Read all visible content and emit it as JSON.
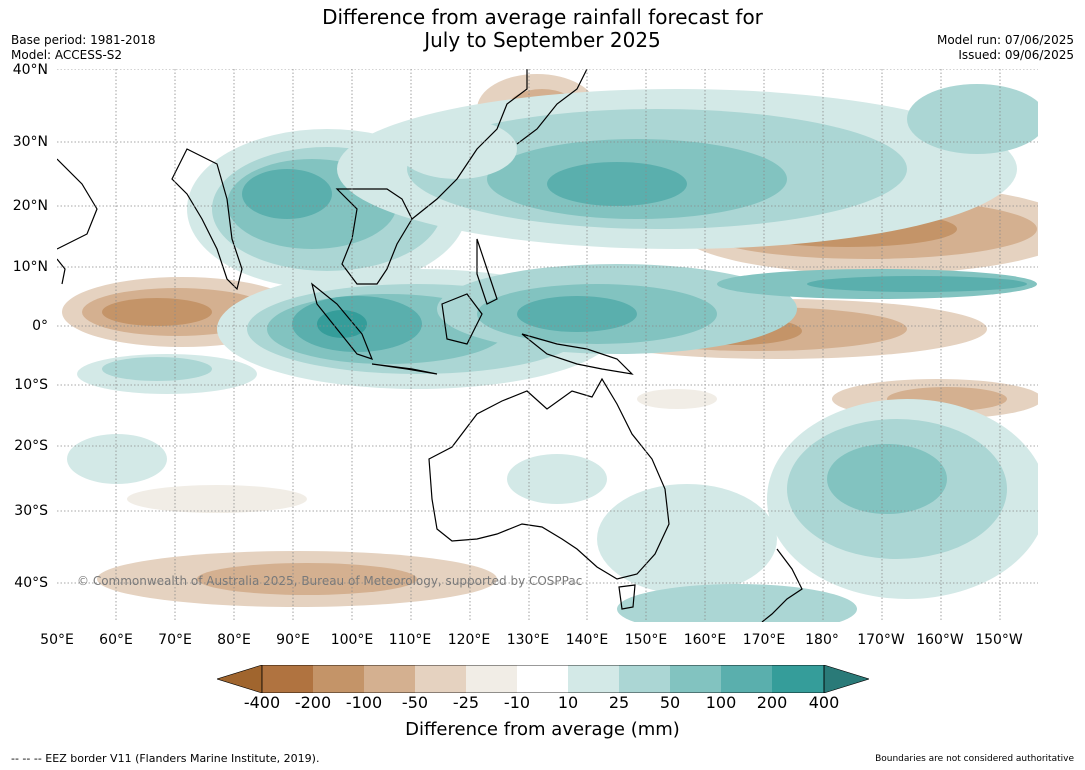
{
  "header": {
    "title_line1": "Difference from average rainfall forecast for",
    "title_line2": "July to September 2025",
    "base_period": "Base period: 1981-2018",
    "model": "Model: ACCESS-S2",
    "model_run": "Model run: 07/06/2025",
    "issued": "Issued: 09/06/2025"
  },
  "axes": {
    "lat_labels": [
      "40°N",
      "30°N",
      "20°N",
      "10°N",
      "0°",
      "10°S",
      "20°S",
      "30°S",
      "40°S"
    ],
    "lon_labels": [
      "50°E",
      "60°E",
      "70°E",
      "80°E",
      "90°E",
      "100°E",
      "110°E",
      "120°E",
      "130°E",
      "140°E",
      "150°E",
      "160°E",
      "170°E",
      "180°",
      "170°W",
      "160°W",
      "150°W"
    ]
  },
  "map": {
    "copyright": "© Commonwealth of Australia 2025, Bureau of Meteorology, supported by COSPPac"
  },
  "legend": {
    "tick_labels": [
      "-400",
      "-200",
      "-100",
      "-50",
      "-25",
      "-10",
      "10",
      "25",
      "50",
      "100",
      "200",
      "400"
    ],
    "label": "Difference from average (mm)",
    "colors": [
      "#a0652e",
      "#b07340",
      "#c49468",
      "#d4b090",
      "#e5d2c0",
      "#f1ede6",
      "#ffffff",
      "#d3e9e7",
      "#abd6d4",
      "#82c3c0",
      "#5aafad",
      "#359d9a",
      "#2a7a78"
    ]
  },
  "footer": {
    "eez_note": "--  --  -- EEZ border V11 (Flanders Marine Institute, 2019).",
    "disclaimer": "Boundaries are not considered authoritative"
  }
}
